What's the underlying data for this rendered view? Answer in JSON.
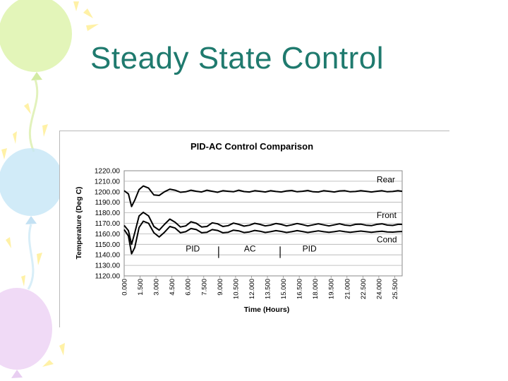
{
  "slide": {
    "title": "Steady State Control",
    "title_color": "#1f7a6e"
  },
  "decor": {
    "balloon_colors": [
      "#dcf2a8",
      "#c6e6f6",
      "#edd4f4",
      "#fff6b8"
    ]
  },
  "chart_data": {
    "type": "line",
    "title": "PID-AC Control Comparison",
    "xlabel": "Time (Hours)",
    "ylabel": "Temperature (Deg C)",
    "ylim": [
      1120,
      1220
    ],
    "yticks": [
      "1220.00",
      "1210.00",
      "1200.00",
      "1190.00",
      "1180.00",
      "1170.00",
      "1160.00",
      "1150.00",
      "1140.00",
      "1130.00",
      "1120.00"
    ],
    "xlim": [
      0,
      26.2
    ],
    "xticks": [
      "0.000",
      "1.500",
      "3.000",
      "4.500",
      "6.000",
      "7.500",
      "9.000",
      "10.500",
      "12.000",
      "13.500",
      "15.000",
      "16.500",
      "18.000",
      "19.500",
      "21.000",
      "22.500",
      "24.000",
      "25.500"
    ],
    "grid": "horizontal",
    "series": [
      {
        "name": "Rear",
        "x": [
          0,
          0.4,
          0.7,
          1.0,
          1.4,
          1.8,
          2.3,
          2.8,
          3.3,
          3.8,
          4.3,
          4.8,
          5.3,
          5.8,
          6.3,
          6.8,
          7.3,
          7.8,
          8.3,
          8.8,
          9.3,
          9.8,
          10.3,
          10.8,
          11.3,
          11.8,
          12.3,
          12.8,
          13.3,
          13.8,
          14.3,
          14.8,
          15.3,
          15.8,
          16.3,
          16.8,
          17.3,
          17.8,
          18.3,
          18.8,
          19.3,
          19.8,
          20.3,
          20.8,
          21.3,
          21.8,
          22.3,
          22.8,
          23.3,
          23.8,
          24.3,
          24.8,
          25.3,
          25.8,
          26.2
        ],
        "y": [
          1201,
          1198,
          1186,
          1192,
          1202,
          1205.5,
          1203.5,
          1197,
          1196.5,
          1200,
          1202.5,
          1201.5,
          1199.5,
          1200,
          1201.5,
          1200.5,
          1199.8,
          1201.5,
          1200.5,
          1199.5,
          1201,
          1200.5,
          1200,
          1201.5,
          1200.2,
          1199.8,
          1201,
          1200.5,
          1199.8,
          1201,
          1200.3,
          1199.8,
          1200.8,
          1201.2,
          1200,
          1200.5,
          1201.2,
          1200,
          1199.8,
          1201,
          1200.5,
          1199.8,
          1200.8,
          1201,
          1200,
          1200.3,
          1201,
          1200.5,
          1199.8,
          1200.5,
          1201,
          1200,
          1200.3,
          1201,
          1200.5
        ]
      },
      {
        "name": "Front",
        "x": [
          0,
          0.4,
          0.7,
          1.0,
          1.4,
          1.8,
          2.3,
          2.8,
          3.3,
          3.8,
          4.3,
          4.8,
          5.3,
          5.8,
          6.3,
          6.8,
          7.3,
          7.8,
          8.3,
          8.8,
          9.3,
          9.8,
          10.3,
          10.8,
          11.3,
          11.8,
          12.3,
          12.8,
          13.3,
          13.8,
          14.3,
          14.8,
          15.3,
          15.8,
          16.3,
          16.8,
          17.3,
          17.8,
          18.3,
          18.8,
          19.3,
          19.8,
          20.3,
          20.8,
          21.3,
          21.8,
          22.3,
          22.8,
          23.3,
          23.8,
          24.3,
          24.8,
          25.3,
          25.8,
          26.2
        ],
        "y": [
          1168,
          1163,
          1150,
          1161,
          1177,
          1180.5,
          1177,
          1167,
          1163.5,
          1169,
          1174,
          1171,
          1166.5,
          1167.5,
          1171.5,
          1170,
          1166.5,
          1167,
          1170.5,
          1169.5,
          1167,
          1167.8,
          1170.2,
          1169,
          1167.3,
          1168.2,
          1170,
          1169,
          1167.5,
          1168.3,
          1169.8,
          1169,
          1167.5,
          1168.5,
          1169.8,
          1168.8,
          1167.5,
          1168.5,
          1169.5,
          1168.5,
          1167.5,
          1168.5,
          1169.5,
          1168.3,
          1167.8,
          1169,
          1169.2,
          1168.2,
          1167.8,
          1169,
          1169.5,
          1168.3,
          1168,
          1169,
          1169
        ]
      },
      {
        "name": "Cond",
        "x": [
          0,
          0.4,
          0.7,
          1.0,
          1.4,
          1.8,
          2.3,
          2.8,
          3.3,
          3.8,
          4.3,
          4.8,
          5.3,
          5.8,
          6.3,
          6.8,
          7.3,
          7.8,
          8.3,
          8.8,
          9.3,
          9.8,
          10.3,
          10.8,
          11.3,
          11.8,
          12.3,
          12.8,
          13.3,
          13.8,
          14.3,
          14.8,
          15.3,
          15.8,
          16.3,
          16.8,
          17.3,
          17.8,
          18.3,
          18.8,
          19.3,
          19.8,
          20.3,
          20.8,
          21.3,
          21.8,
          22.3,
          22.8,
          23.3,
          23.8,
          24.3,
          24.8,
          25.3,
          25.8,
          26.2
        ],
        "y": [
          1164,
          1158,
          1141,
          1147,
          1166,
          1172,
          1170,
          1161,
          1157,
          1161.5,
          1167,
          1165.5,
          1161,
          1162,
          1165,
          1164,
          1161,
          1161.5,
          1164,
          1163.2,
          1161,
          1161.5,
          1163.5,
          1162.8,
          1161.2,
          1161.8,
          1163.2,
          1162.5,
          1161.3,
          1162,
          1163,
          1162.3,
          1161.3,
          1162,
          1163,
          1162.2,
          1161.3,
          1162,
          1162.8,
          1162,
          1161.5,
          1162,
          1162.8,
          1162,
          1161.5,
          1162,
          1162.6,
          1162,
          1161.5,
          1162,
          1162.5,
          1161.8,
          1161.6,
          1162,
          1162.2
        ]
      }
    ],
    "series_labels": [
      {
        "text": "Rear",
        "x": 23.8,
        "y": 1209
      },
      {
        "text": "Front",
        "x": 23.8,
        "y": 1175
      },
      {
        "text": "Cond",
        "x": 23.8,
        "y": 1152
      }
    ],
    "mode_labels": [
      {
        "text": "PID",
        "x": 5.8,
        "y": 1143
      },
      {
        "text": "AC",
        "x": 11.3,
        "y": 1143
      },
      {
        "text": "PID",
        "x": 16.8,
        "y": 1143
      }
    ],
    "phase_dividers": [
      8.9,
      14.7
    ],
    "divider_span": [
      1137,
      1148
    ]
  }
}
